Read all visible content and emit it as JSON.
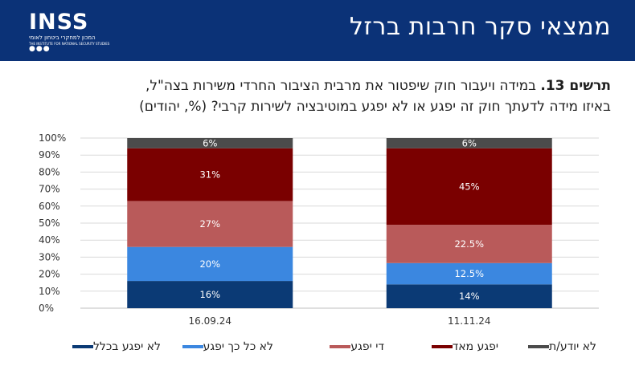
{
  "header": {
    "title": "ממצאי סקר חרבות ברזל",
    "logo_text": "INSS",
    "logo_sub_he": "המכון למחקרי ביטחון לאומי",
    "logo_sub_en": "THE INSTITUTE FOR NATIONAL SECURITY STUDIES"
  },
  "question": {
    "label": "תרשים 13.",
    "line1": " במידה ויעבור חוק שיפטור את מרבית הציבור החרדי משירות בצה\"ל,",
    "line2": "באיזו מידה לדעתך חוק זה יפגע או לא יפגע במוטיבציה לשירות קרבי? (%, יהודים)"
  },
  "colors": {
    "header_bg": "#0b3277",
    "not_at_all": "#0b3a75",
    "not_much": "#3b87e0",
    "somewhat": "#b95a5a",
    "very_much": "#7a0000",
    "dont_know": "#4b4b4b"
  },
  "chart_data": {
    "type": "bar",
    "stacked": true,
    "categories": [
      "16.09.24",
      "11.11.24"
    ],
    "series": [
      {
        "name": "לא יפגע בכלל",
        "values": [
          16,
          14
        ],
        "labels": [
          "16%",
          "14%"
        ],
        "color": "#0b3a75"
      },
      {
        "name": "לא כל כך יפגע",
        "values": [
          20,
          12.5
        ],
        "labels": [
          "20%",
          "12.5%"
        ],
        "color": "#3b87e0"
      },
      {
        "name": "די יפגע",
        "values": [
          27,
          22.5
        ],
        "labels": [
          "27%",
          "22.5%"
        ],
        "color": "#b95a5a"
      },
      {
        "name": "יפגע מאד",
        "values": [
          31,
          45
        ],
        "labels": [
          "31%",
          "45%"
        ],
        "color": "#7a0000"
      },
      {
        "name": "לא יודע/ת",
        "values": [
          6,
          6
        ],
        "labels": [
          "6%",
          "6%"
        ],
        "color": "#4b4b4b"
      }
    ],
    "ylim": [
      0,
      100
    ],
    "yticks": [
      "0%",
      "10%",
      "20%",
      "30%",
      "40%",
      "50%",
      "60%",
      "70%",
      "80%",
      "90%",
      "100%"
    ],
    "grid": true,
    "legend_position": "bottom"
  }
}
